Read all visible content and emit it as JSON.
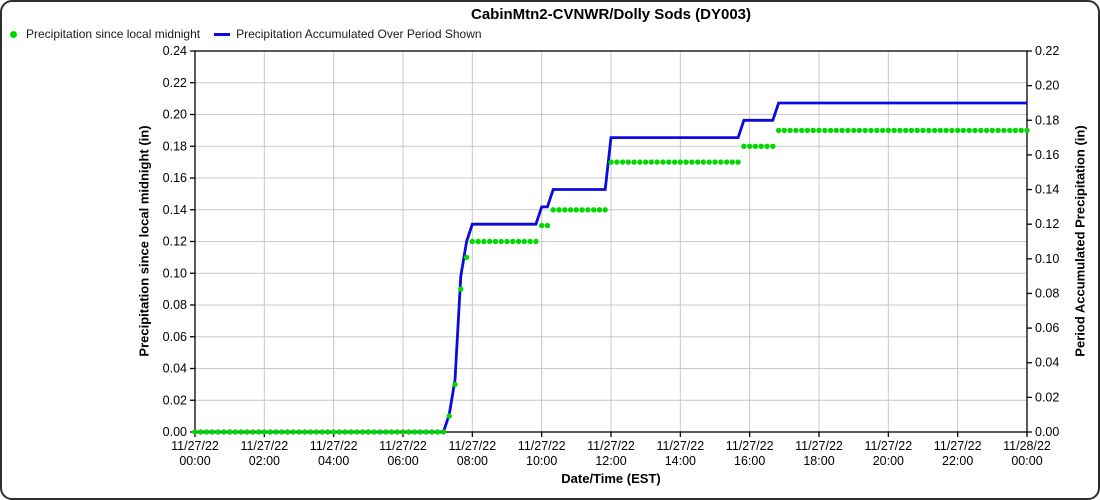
{
  "colors": {
    "background": "#ffffff",
    "border": "#2e2e2e",
    "grid": "#c8c8c8",
    "axis": "#000000",
    "scatter_green": "#00d900",
    "line_blue": "#0b0bdf"
  },
  "chart_data": {
    "type": "line",
    "title": "CabinMtn2-CVNWR/Dolly Sods (DY003)",
    "xlabel": "Date/Time (EST)",
    "grid": true,
    "legend_position": "top-left",
    "x_range_hours": [
      0,
      24
    ],
    "sample_interval_minutes": 10,
    "x_ticks": [
      {
        "date": "11/27/22",
        "time": "00:00",
        "hours": 0
      },
      {
        "date": "11/27/22",
        "time": "02:00",
        "hours": 2
      },
      {
        "date": "11/27/22",
        "time": "04:00",
        "hours": 4
      },
      {
        "date": "11/27/22",
        "time": "06:00",
        "hours": 6
      },
      {
        "date": "11/27/22",
        "time": "08:00",
        "hours": 8
      },
      {
        "date": "11/27/22",
        "time": "10:00",
        "hours": 10
      },
      {
        "date": "11/27/22",
        "time": "12:00",
        "hours": 12
      },
      {
        "date": "11/27/22",
        "time": "14:00",
        "hours": 14
      },
      {
        "date": "11/27/22",
        "time": "16:00",
        "hours": 16
      },
      {
        "date": "11/27/22",
        "time": "18:00",
        "hours": 18
      },
      {
        "date": "11/27/22",
        "time": "20:00",
        "hours": 20
      },
      {
        "date": "11/27/22",
        "time": "22:00",
        "hours": 22
      },
      {
        "date": "11/28/22",
        "time": "00:00",
        "hours": 24
      }
    ],
    "left_axis": {
      "label": "Precipitation since local midnight (in)",
      "min": 0,
      "max": 0.24,
      "tick_step": 0.02,
      "tick_labels": [
        "0.00",
        "0.02",
        "0.04",
        "0.06",
        "0.08",
        "0.10",
        "0.12",
        "0.14",
        "0.16",
        "0.18",
        "0.20",
        "0.22",
        "0.24"
      ]
    },
    "right_axis": {
      "label": "Period Accumulated Precipitation (in)",
      "min": 0,
      "max": 0.22,
      "tick_step": 0.02,
      "tick_labels": [
        "0.00",
        "0.02",
        "0.04",
        "0.06",
        "0.08",
        "0.10",
        "0.12",
        "0.14",
        "0.16",
        "0.18",
        "0.20",
        "0.22"
      ]
    },
    "series": [
      {
        "name": "Precipitation since local midnight",
        "type": "scatter",
        "axis": "left",
        "color": "#00d900",
        "step_points": [
          [
            "00:00",
            0.0
          ],
          [
            "07:20",
            0.01
          ],
          [
            "07:30",
            0.03
          ],
          [
            "07:40",
            0.09
          ],
          [
            "07:50",
            0.11
          ],
          [
            "08:00",
            0.12
          ],
          [
            "10:00",
            0.13
          ],
          [
            "10:20",
            0.14
          ],
          [
            "12:00",
            0.17
          ],
          [
            "15:50",
            0.18
          ],
          [
            "16:50",
            0.19
          ]
        ]
      },
      {
        "name": "Precipitation Accumulated Over Period Shown",
        "type": "line",
        "axis": "right",
        "color": "#0b0bdf",
        "step_points": [
          [
            "00:00",
            0.0
          ],
          [
            "07:20",
            0.01
          ],
          [
            "07:30",
            0.03
          ],
          [
            "07:40",
            0.09
          ],
          [
            "07:50",
            0.11
          ],
          [
            "08:00",
            0.12
          ],
          [
            "10:00",
            0.13
          ],
          [
            "10:20",
            0.14
          ],
          [
            "12:00",
            0.17
          ],
          [
            "15:50",
            0.18
          ],
          [
            "16:50",
            0.19
          ]
        ]
      }
    ]
  }
}
